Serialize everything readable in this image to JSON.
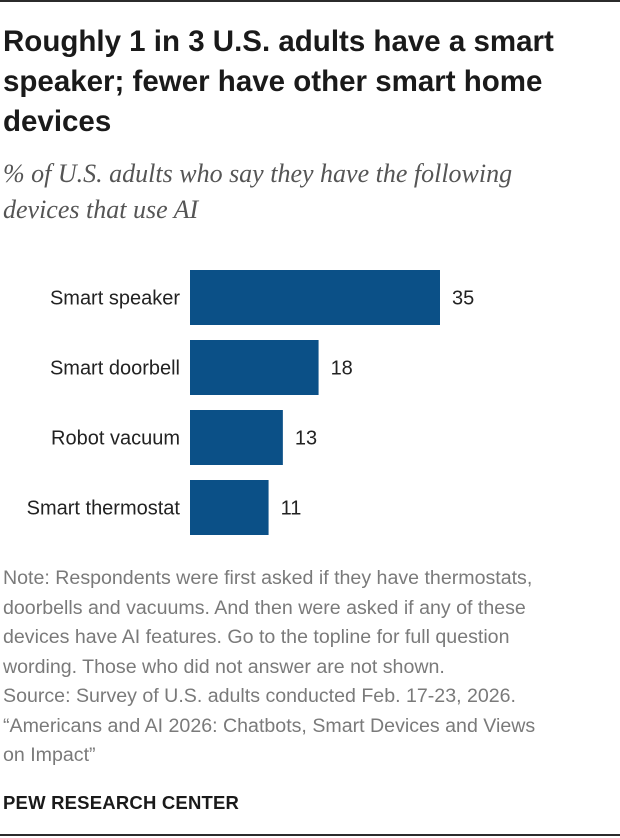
{
  "title_lines": [
    "Roughly 1 in 3 U.S. adults have a smart",
    "speaker; fewer have other smart home",
    "devices"
  ],
  "subtitle_lines": [
    "% of U.S. adults who say they have the following",
    "devices that use AI"
  ],
  "chart_data": {
    "type": "bar",
    "orientation": "horizontal",
    "categories": [
      "Smart speaker",
      "Smart doorbell",
      "Robot vacuum",
      "Smart thermostat"
    ],
    "values": [
      35,
      18,
      13,
      11
    ],
    "value_unit": "% of U.S. adults",
    "bar_color": "#0b5087",
    "grid": false,
    "legend": "none"
  },
  "note_lines": [
    "Note: Respondents were first asked if they have thermostats,",
    "doorbells and vacuums. And then were asked if any of these",
    "devices have AI features. Go to the topline for full question",
    "wording. Those who did not answer are not shown.",
    "Source: Survey of U.S. adults conducted Feb. 17-23, 2026.",
    "“Americans and AI 2026: Chatbots, Smart Devices and Views",
    "on Impact”"
  ],
  "brand": "PEW RESEARCH CENTER"
}
